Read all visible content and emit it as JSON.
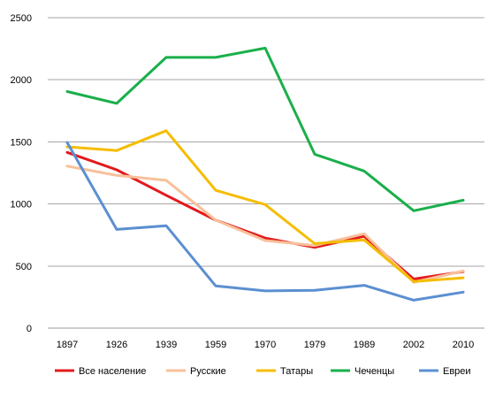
{
  "chart_data": {
    "type": "line",
    "title": "",
    "xlabel": "",
    "ylabel": "",
    "categories": [
      "1897",
      "1926",
      "1939",
      "1959",
      "1970",
      "1979",
      "1989",
      "2002",
      "2010"
    ],
    "ylim": [
      0,
      2500
    ],
    "yticks": [
      0,
      500,
      1000,
      1500,
      2000,
      2500
    ],
    "grid": "horizontal",
    "legend_position": "bottom",
    "series": [
      {
        "name": "Все население",
        "color": "#e31a1c",
        "values": [
          1415,
          1275,
          1070,
          870,
          725,
          650,
          740,
          395,
          455
        ]
      },
      {
        "name": "Русские",
        "color": "#f8c09a",
        "values": [
          1305,
          1230,
          1190,
          870,
          705,
          665,
          760,
          370,
          460
        ]
      },
      {
        "name": "Татары",
        "color": "#f5bd00",
        "values": [
          1460,
          1430,
          1590,
          1110,
          995,
          680,
          710,
          375,
          405
        ]
      },
      {
        "name": "Чеченцы",
        "color": "#1aaf4b",
        "values": [
          1905,
          1810,
          2180,
          2180,
          2255,
          1400,
          1265,
          945,
          1030
        ]
      },
      {
        "name": "Евреи",
        "color": "#5b8fd1",
        "values": [
          1495,
          795,
          825,
          340,
          300,
          305,
          345,
          225,
          290
        ]
      }
    ]
  }
}
